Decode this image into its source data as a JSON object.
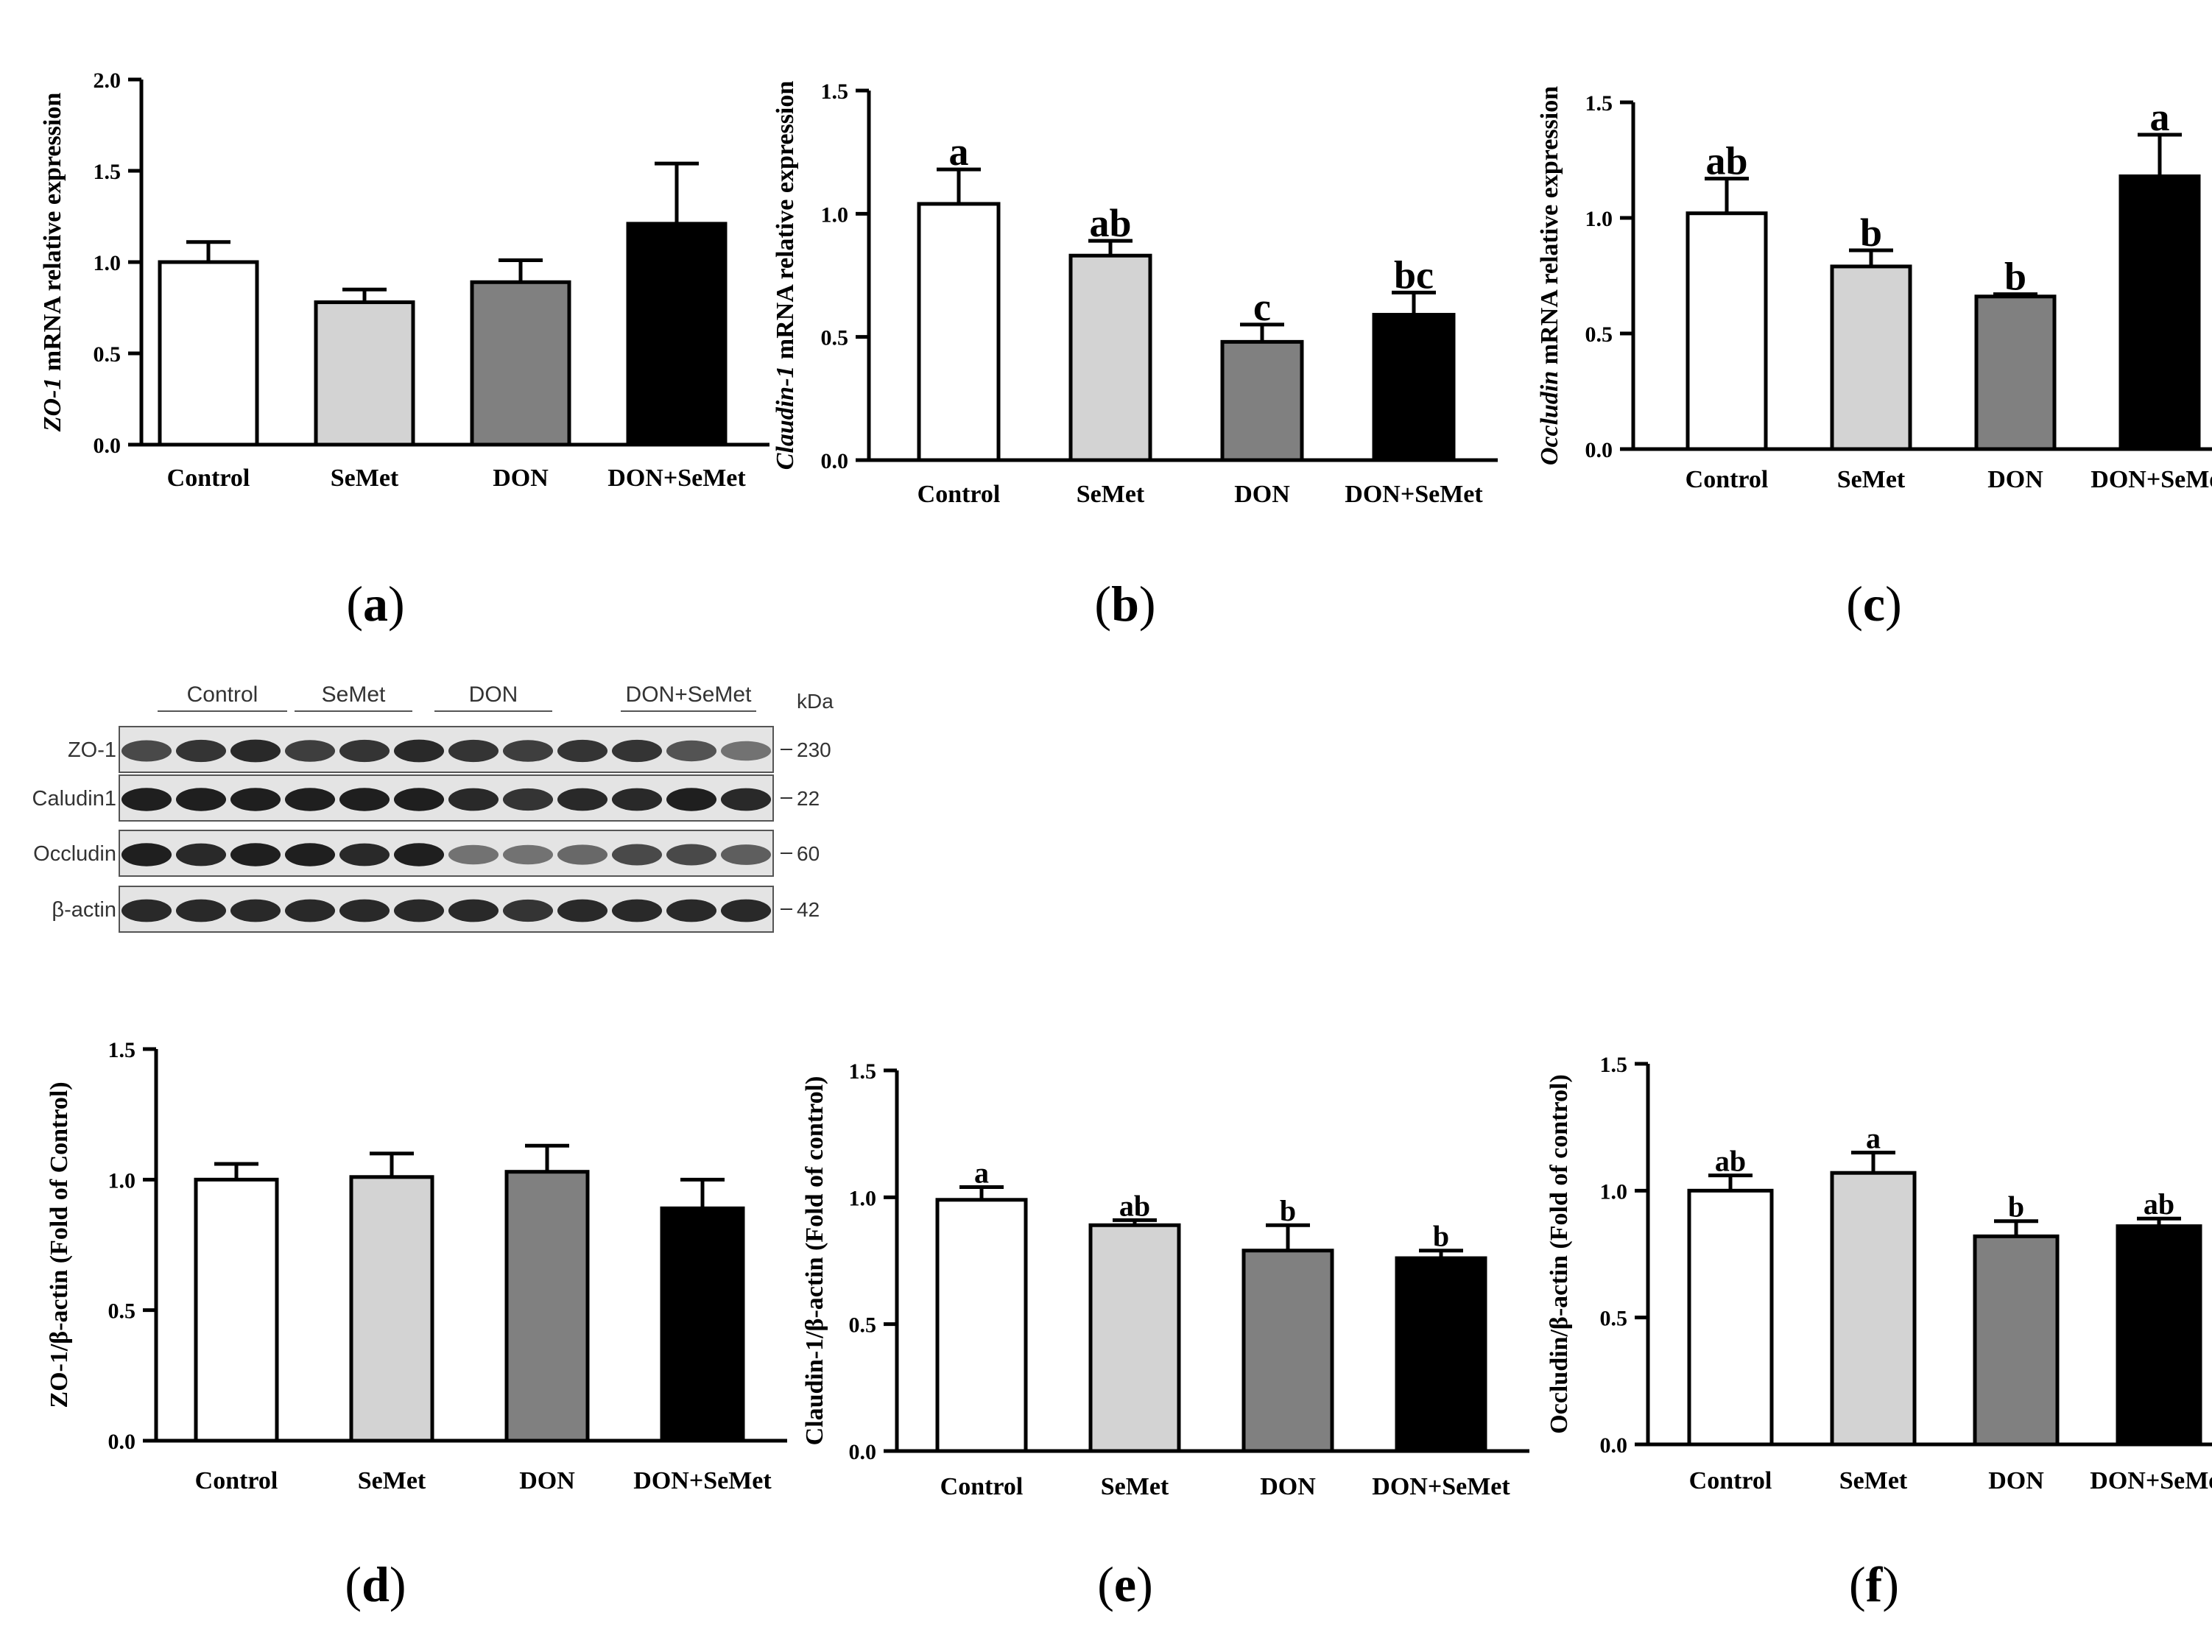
{
  "figure": {
    "groups": [
      "Control",
      "SeMet",
      "DON",
      "DON+SeMet"
    ],
    "colors": {
      "Control": "#ffffff",
      "SeMet": "#d3d3d3",
      "DON": "#808080",
      "DON+SeMet": "#000000"
    }
  },
  "chart_data": [
    {
      "id": "a",
      "panel_label": "(a)",
      "type": "bar",
      "ylabel_gene": "ZO-1",
      "ylabel_rest": " mRNA relative expression",
      "categories": [
        "Control",
        "SeMet",
        "DON",
        "DON+SeMet"
      ],
      "values": [
        1.0,
        0.78,
        0.89,
        1.21
      ],
      "errors": [
        0.11,
        0.07,
        0.12,
        0.33
      ],
      "letters": [
        "",
        "",
        "",
        ""
      ],
      "ylim": [
        0,
        2.0
      ],
      "yticks": [
        "0.0",
        "0.5",
        "1.0",
        "1.5",
        "2.0"
      ]
    },
    {
      "id": "b",
      "panel_label": "(b)",
      "type": "bar",
      "ylabel_gene": "Claudin-1",
      "ylabel_rest": " mRNA relative expression",
      "categories": [
        "Control",
        "SeMet",
        "DON",
        "DON+SeMet"
      ],
      "values": [
        1.04,
        0.83,
        0.48,
        0.59
      ],
      "errors": [
        0.14,
        0.06,
        0.07,
        0.09
      ],
      "letters": [
        "a",
        "ab",
        "c",
        "bc"
      ],
      "ylim": [
        0,
        1.5
      ],
      "yticks": [
        "0.0",
        "0.5",
        "1.0",
        "1.5"
      ]
    },
    {
      "id": "c",
      "panel_label": "(c)",
      "type": "bar",
      "ylabel_gene": "Occludin",
      "ylabel_rest": " mRNA relative expression",
      "categories": [
        "Control",
        "SeMet",
        "DON",
        "DON+SeMet"
      ],
      "values": [
        1.02,
        0.79,
        0.66,
        1.18
      ],
      "errors": [
        0.15,
        0.07,
        0.01,
        0.18
      ],
      "letters": [
        "ab",
        "b",
        "b",
        "a"
      ],
      "ylim": [
        0,
        1.5
      ],
      "yticks": [
        "0.0",
        "0.5",
        "1.0",
        "1.5"
      ]
    },
    {
      "id": "d",
      "panel_label": "(d)",
      "type": "bar",
      "ylabel_gene": "",
      "ylabel_rest": "ZO-1/β-actin (Fold of Control)",
      "categories": [
        "Control",
        "SeMet",
        "DON",
        "DON+SeMet"
      ],
      "values": [
        1.0,
        1.01,
        1.03,
        0.89
      ],
      "errors": [
        0.06,
        0.09,
        0.1,
        0.11
      ],
      "letters": [
        "",
        "",
        "",
        ""
      ],
      "ylim": [
        0,
        1.5
      ],
      "yticks": [
        "0.0",
        "0.5",
        "1.0",
        "1.5"
      ]
    },
    {
      "id": "e",
      "panel_label": "(e)",
      "type": "bar",
      "ylabel_gene": "",
      "ylabel_rest": "Claudin-1/β-actin (Fold of control)",
      "categories": [
        "Control",
        "SeMet",
        "DON",
        "DON+SeMet"
      ],
      "values": [
        0.99,
        0.89,
        0.79,
        0.76
      ],
      "errors": [
        0.05,
        0.02,
        0.1,
        0.03
      ],
      "letters": [
        "a",
        "ab",
        "b",
        "b"
      ],
      "ylim": [
        0,
        1.5
      ],
      "yticks": [
        "0.0",
        "0.5",
        "1.0",
        "1.5"
      ]
    },
    {
      "id": "f",
      "panel_label": "(f)",
      "type": "bar",
      "ylabel_gene": "",
      "ylabel_rest": "Occludin/β-actin (Fold of control)",
      "categories": [
        "Control",
        "SeMet",
        "DON",
        "DON+SeMet"
      ],
      "values": [
        1.0,
        1.07,
        0.82,
        0.86
      ],
      "errors": [
        0.06,
        0.08,
        0.06,
        0.03
      ],
      "letters": [
        "ab",
        "a",
        "b",
        "ab"
      ],
      "ylim": [
        0,
        1.5
      ],
      "yticks": [
        "0.0",
        "0.5",
        "1.0",
        "1.5"
      ]
    }
  ],
  "western_blot": {
    "kda_label": "kDa",
    "groups": [
      "Control",
      "SeMet",
      "DON",
      "DON+SeMet"
    ],
    "rows": [
      {
        "label": "ZO-1",
        "kda": "230",
        "intensity": [
          0.75,
          0.85,
          0.9,
          0.8,
          0.85,
          0.9,
          0.85,
          0.8,
          0.85,
          0.85,
          0.7,
          0.55
        ]
      },
      {
        "label": "Caludin1",
        "kda": "22",
        "intensity": [
          0.95,
          0.95,
          0.95,
          0.95,
          0.95,
          0.95,
          0.9,
          0.85,
          0.9,
          0.9,
          0.95,
          0.9
        ]
      },
      {
        "label": "Occludin",
        "kda": "60",
        "intensity": [
          0.95,
          0.9,
          0.95,
          0.95,
          0.9,
          0.95,
          0.55,
          0.55,
          0.6,
          0.75,
          0.75,
          0.65
        ]
      },
      {
        "label": "β-actin",
        "kda": "42",
        "intensity": [
          0.9,
          0.9,
          0.9,
          0.9,
          0.9,
          0.9,
          0.9,
          0.85,
          0.9,
          0.9,
          0.9,
          0.9
        ]
      }
    ]
  }
}
